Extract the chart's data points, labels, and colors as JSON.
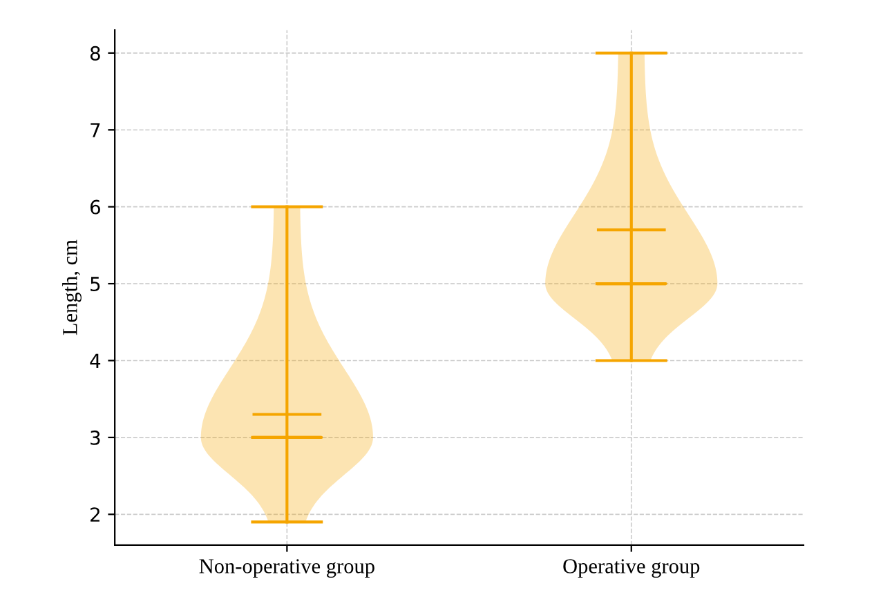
{
  "chart_data": {
    "type": "box",
    "categories": [
      "Non-operative group",
      "Operative group"
    ],
    "ylabel": "Length, cm",
    "color": "#f5a500",
    "boxes": [
      {
        "low": 1.9,
        "q1": 3.0,
        "median": 3.0,
        "q3": 3.0,
        "mean": 3.3,
        "high": 6.0
      },
      {
        "low": 4.0,
        "q1": 5.0,
        "median": 5.0,
        "q3": 5.0,
        "mean": 5.7,
        "high": 8.0
      }
    ],
    "ylim": [
      1.6,
      8.3
    ],
    "yticks": [
      2,
      3,
      4,
      5,
      6,
      7,
      8
    ],
    "grid": true
  }
}
